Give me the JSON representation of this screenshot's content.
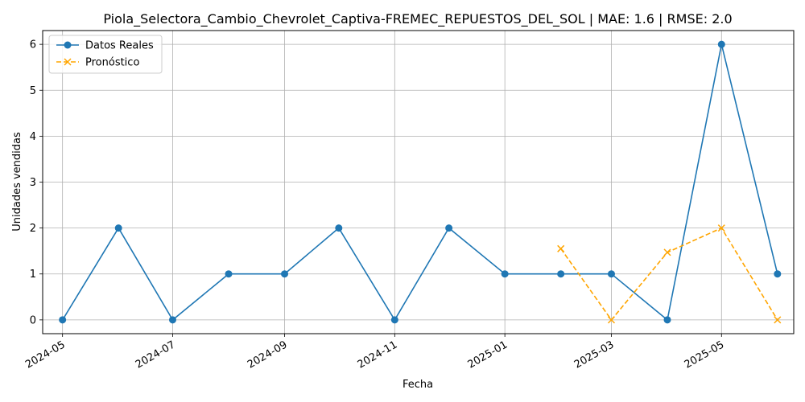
{
  "chart_data": {
    "type": "line",
    "title": "Piola_Selectora_Cambio_Chevrolet_Captiva-FREMEC_REPUESTOS_DEL_SOL | MAE: 1.6 | RMSE: 2.0",
    "xlabel": "Fecha",
    "ylabel": "Unidades vendidas",
    "ylim": [
      -0.3,
      6.3
    ],
    "xlim": [
      "2024-04-20",
      "2025-06-10"
    ],
    "x_ticks": [
      "2024-05",
      "2024-07",
      "2024-09",
      "2024-11",
      "2025-01",
      "2025-03",
      "2025-05"
    ],
    "y_ticks": [
      0,
      1,
      2,
      3,
      4,
      5,
      6
    ],
    "grid": true,
    "legend_position": "top-left",
    "series": [
      {
        "name": "Datos Reales",
        "color": "#1f77b4",
        "style": "solid",
        "marker": "circle",
        "x": [
          "2024-05-01",
          "2024-06-01",
          "2024-07-01",
          "2024-08-01",
          "2024-09-01",
          "2024-10-01",
          "2024-11-01",
          "2024-12-01",
          "2025-01-01",
          "2025-02-01",
          "2025-03-01",
          "2025-04-01",
          "2025-05-01",
          "2025-06-01"
        ],
        "values": [
          0,
          2,
          0,
          1,
          1,
          2,
          0,
          2,
          1,
          1,
          1,
          0,
          6,
          1
        ]
      },
      {
        "name": "Pronóstico",
        "color": "#ffa500",
        "style": "dashed",
        "marker": "x",
        "x": [
          "2025-02-01",
          "2025-03-01",
          "2025-04-01",
          "2025-05-01",
          "2025-06-01"
        ],
        "values": [
          1.55,
          0,
          1.47,
          2,
          0
        ]
      }
    ]
  }
}
